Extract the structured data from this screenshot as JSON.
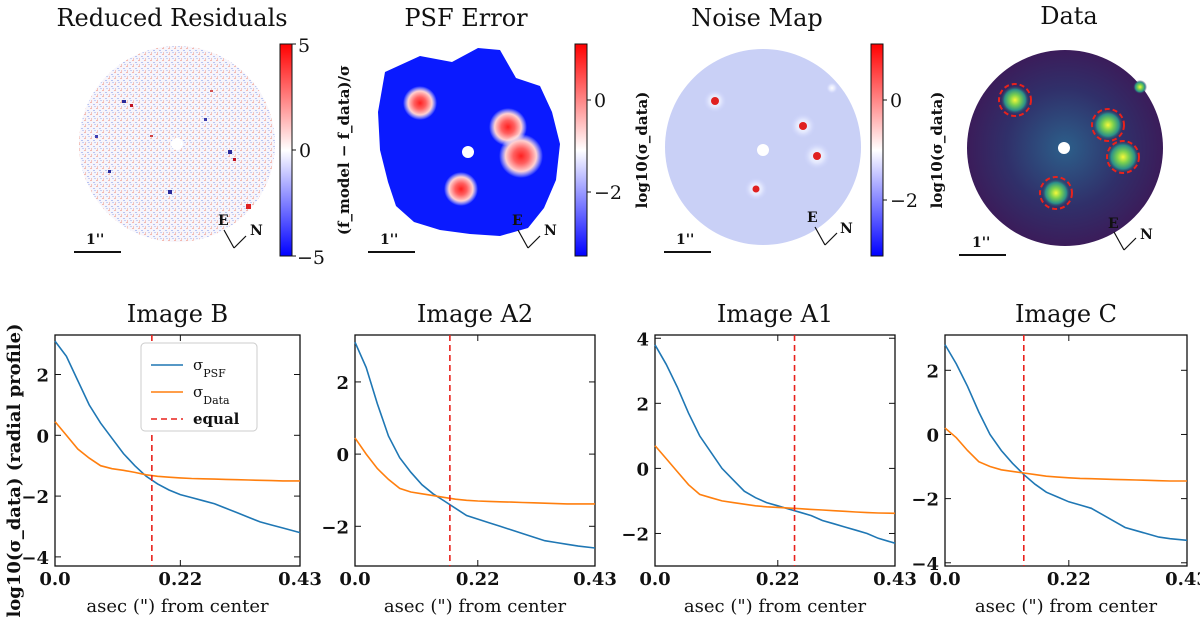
{
  "maps": [
    {
      "title": "Reduced Residuals",
      "colorbar": {
        "ticks": [
          "5",
          "0",
          "−5"
        ],
        "label": "(f_model − f_data)/σ"
      },
      "scale_label": "1''",
      "compass": {
        "east": "E",
        "north": "N"
      }
    },
    {
      "title": "PSF Error",
      "colorbar": {
        "ticks": [
          "0",
          "−2"
        ],
        "label": "log10(σ_data)"
      },
      "scale_label": "1''",
      "compass": {
        "east": "E",
        "north": "N"
      }
    },
    {
      "title": "Noise Map",
      "colorbar": {
        "ticks": [
          "0",
          "−2"
        ],
        "label": "log10(σ_data)"
      },
      "scale_label": "1''",
      "compass": {
        "east": "E",
        "north": "N"
      }
    },
    {
      "title": "Data",
      "scale_label": "1''",
      "compass": {
        "east": "E",
        "north": "N"
      }
    }
  ],
  "colors": {
    "psf": "#1f77b4",
    "data": "#ff7f0e",
    "equal": "#e8221c",
    "map_blue": "#0a1aff",
    "map_red": "#e8101e",
    "data_bg": "#3b1c5a"
  },
  "chart_data": [
    {
      "type": "line",
      "title": "Image B",
      "xlabel": "asec (\") from center",
      "ylabel": "log10(σ_data) (radial profile)",
      "xlim": [
        0.0,
        0.43
      ],
      "ylim": [
        -4.3,
        3.3
      ],
      "xticks": [
        {
          "v": 0.0,
          "label": "0.0"
        },
        {
          "v": 0.22,
          "label": "0.22"
        },
        {
          "v": 0.43,
          "label": "0.43"
        }
      ],
      "yticks": [
        2,
        0,
        -2,
        -4
      ],
      "x": [
        0.0,
        0.02,
        0.04,
        0.06,
        0.08,
        0.1,
        0.12,
        0.14,
        0.16,
        0.18,
        0.2,
        0.22,
        0.24,
        0.26,
        0.28,
        0.3,
        0.32,
        0.34,
        0.36,
        0.38,
        0.4,
        0.43
      ],
      "series": [
        {
          "name": "σ_PSF",
          "values": [
            3.1,
            2.6,
            1.8,
            1.0,
            0.4,
            -0.1,
            -0.6,
            -1.0,
            -1.35,
            -1.6,
            -1.8,
            -1.95,
            -2.05,
            -2.15,
            -2.25,
            -2.4,
            -2.55,
            -2.7,
            -2.85,
            -2.95,
            -3.05,
            -3.2
          ]
        },
        {
          "name": "σ_Data",
          "values": [
            0.45,
            0.0,
            -0.45,
            -0.75,
            -1.0,
            -1.1,
            -1.15,
            -1.22,
            -1.3,
            -1.35,
            -1.38,
            -1.4,
            -1.42,
            -1.43,
            -1.44,
            -1.45,
            -1.46,
            -1.47,
            -1.48,
            -1.49,
            -1.5,
            -1.5
          ]
        }
      ],
      "equal_x": 0.17,
      "legend": [
        {
          "label": "σ_PSF"
        },
        {
          "label": "σ_Data"
        },
        {
          "label": "equal"
        }
      ]
    },
    {
      "type": "line",
      "title": "Image A2",
      "xlabel": "asec (\") from center",
      "xlim": [
        0.0,
        0.43
      ],
      "ylim": [
        -3.1,
        3.3
      ],
      "xticks": [
        {
          "v": 0.0,
          "label": "0.0"
        },
        {
          "v": 0.22,
          "label": "0.22"
        },
        {
          "v": 0.43,
          "label": "0.43"
        }
      ],
      "yticks": [
        2,
        0,
        -2
      ],
      "x": [
        0.0,
        0.02,
        0.04,
        0.06,
        0.08,
        0.1,
        0.12,
        0.14,
        0.16,
        0.18,
        0.2,
        0.22,
        0.24,
        0.26,
        0.28,
        0.3,
        0.32,
        0.34,
        0.36,
        0.38,
        0.4,
        0.43
      ],
      "series": [
        {
          "name": "σ_PSF",
          "values": [
            3.1,
            2.4,
            1.4,
            0.5,
            -0.1,
            -0.5,
            -0.85,
            -1.1,
            -1.3,
            -1.5,
            -1.7,
            -1.8,
            -1.9,
            -2.0,
            -2.1,
            -2.2,
            -2.3,
            -2.4,
            -2.45,
            -2.5,
            -2.55,
            -2.6
          ]
        },
        {
          "name": "σ_Data",
          "values": [
            0.45,
            0.0,
            -0.4,
            -0.7,
            -0.95,
            -1.05,
            -1.1,
            -1.15,
            -1.2,
            -1.25,
            -1.28,
            -1.3,
            -1.31,
            -1.32,
            -1.33,
            -1.34,
            -1.35,
            -1.36,
            -1.37,
            -1.38,
            -1.38,
            -1.38
          ]
        }
      ],
      "equal_x": 0.17
    },
    {
      "type": "line",
      "title": "Image A1",
      "xlabel": "asec (\") from center",
      "xlim": [
        0.0,
        0.43
      ],
      "ylim": [
        -3.0,
        4.1
      ],
      "xticks": [
        {
          "v": 0.0,
          "label": "0.0"
        },
        {
          "v": 0.22,
          "label": "0.22"
        },
        {
          "v": 0.43,
          "label": "0.43"
        }
      ],
      "yticks": [
        4,
        2,
        0,
        -2
      ],
      "x": [
        0.0,
        0.02,
        0.04,
        0.06,
        0.08,
        0.1,
        0.12,
        0.14,
        0.16,
        0.18,
        0.2,
        0.22,
        0.24,
        0.26,
        0.28,
        0.3,
        0.32,
        0.34,
        0.36,
        0.38,
        0.4,
        0.43
      ],
      "series": [
        {
          "name": "σ_PSF",
          "values": [
            3.8,
            3.2,
            2.5,
            1.7,
            1.0,
            0.5,
            0.0,
            -0.35,
            -0.7,
            -0.9,
            -1.05,
            -1.15,
            -1.25,
            -1.35,
            -1.45,
            -1.6,
            -1.7,
            -1.8,
            -1.9,
            -2.0,
            -2.15,
            -2.3
          ]
        },
        {
          "name": "σ_Data",
          "values": [
            0.7,
            0.3,
            -0.1,
            -0.5,
            -0.8,
            -0.9,
            -1.0,
            -1.05,
            -1.1,
            -1.15,
            -1.18,
            -1.2,
            -1.22,
            -1.24,
            -1.26,
            -1.28,
            -1.3,
            -1.32,
            -1.34,
            -1.36,
            -1.37,
            -1.38
          ]
        }
      ],
      "equal_x": 0.25
    },
    {
      "type": "line",
      "title": "Image C",
      "xlabel": "asec (\") from center",
      "xlim": [
        0.0,
        0.43
      ],
      "ylim": [
        -4.1,
        3.1
      ],
      "xticks": [
        {
          "v": 0.0,
          "label": "0.0"
        },
        {
          "v": 0.22,
          "label": "0.22"
        },
        {
          "v": 0.43,
          "label": "0.43"
        }
      ],
      "yticks": [
        2,
        0,
        -2,
        -4
      ],
      "x": [
        0.0,
        0.02,
        0.04,
        0.06,
        0.08,
        0.1,
        0.12,
        0.14,
        0.16,
        0.18,
        0.2,
        0.22,
        0.24,
        0.26,
        0.28,
        0.3,
        0.32,
        0.34,
        0.36,
        0.38,
        0.4,
        0.43
      ],
      "series": [
        {
          "name": "σ_PSF",
          "values": [
            2.8,
            2.2,
            1.5,
            0.7,
            0.0,
            -0.5,
            -0.9,
            -1.25,
            -1.55,
            -1.8,
            -1.95,
            -2.1,
            -2.2,
            -2.3,
            -2.5,
            -2.7,
            -2.9,
            -3.0,
            -3.1,
            -3.2,
            -3.25,
            -3.3
          ]
        },
        {
          "name": "σ_Data",
          "values": [
            0.2,
            -0.1,
            -0.5,
            -0.85,
            -1.0,
            -1.1,
            -1.15,
            -1.2,
            -1.25,
            -1.3,
            -1.33,
            -1.35,
            -1.37,
            -1.38,
            -1.39,
            -1.4,
            -1.41,
            -1.42,
            -1.43,
            -1.44,
            -1.45,
            -1.45
          ]
        }
      ],
      "equal_x": 0.14
    }
  ]
}
